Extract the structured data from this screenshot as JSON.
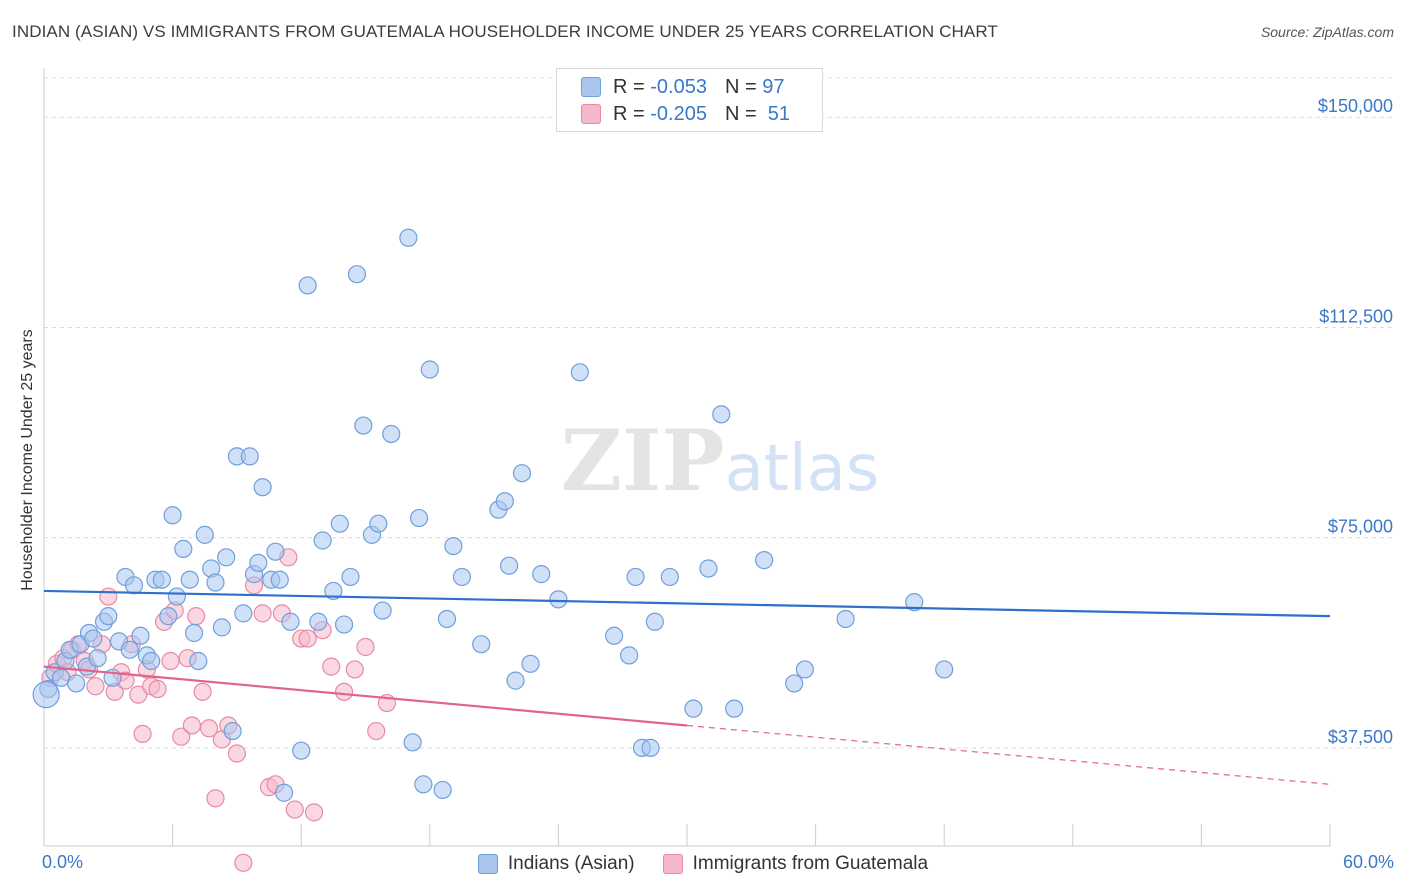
{
  "title": "INDIAN (ASIAN) VS IMMIGRANTS FROM GUATEMALA HOUSEHOLDER INCOME UNDER 25 YEARS CORRELATION CHART",
  "source": "Source: ZipAtlas.com",
  "watermark": "ZIPatlas",
  "colors": {
    "blue_fill": "#a9c7ee",
    "blue_stroke": "#6f9fdc",
    "blue_line": "#2f6fce",
    "pink_fill": "#f5b8c9",
    "pink_stroke": "#e88aa6",
    "pink_line": "#e0648c",
    "tick_label": "#3a78c9",
    "grid": "#dcdcdc"
  },
  "legend_top": {
    "row1": {
      "r_label": "R =",
      "r_value": "-0.053",
      "n_label": "N =",
      "n_value": "97"
    },
    "row2": {
      "r_label": "R =",
      "r_value": "-0.205",
      "n_label": "N =",
      "n_value": "51"
    }
  },
  "chart_data": {
    "type": "scatter",
    "title": "INDIAN (ASIAN) VS IMMIGRANTS FROM GUATEMALA HOUSEHOLDER INCOME UNDER 25 YEARS CORRELATION CHART",
    "xlabel": "",
    "ylabel": "Householder Income Under 25 years",
    "xlim": [
      0,
      60
    ],
    "ylim": [
      20000,
      157000
    ],
    "x_tick_labels": [
      "0.0%",
      "60.0%"
    ],
    "y_ticks": [
      37500,
      75000,
      112500,
      150000
    ],
    "y_tick_labels": [
      "$37,500",
      "$75,000",
      "$112,500",
      "$150,000"
    ],
    "grid": true,
    "series": [
      {
        "name": "Indians (Asian)",
        "r": -0.053,
        "n": 97,
        "trend": {
          "x": [
            0,
            60
          ],
          "y": [
            65500,
            61000
          ]
        },
        "points": [
          [
            0.2,
            48000
          ],
          [
            0.5,
            51000
          ],
          [
            0.8,
            50000
          ],
          [
            1.0,
            53000
          ],
          [
            1.2,
            55000
          ],
          [
            1.5,
            49000
          ],
          [
            1.7,
            56000
          ],
          [
            2.0,
            52000
          ],
          [
            2.1,
            58000
          ],
          [
            2.3,
            57000
          ],
          [
            2.5,
            53500
          ],
          [
            2.8,
            60000
          ],
          [
            3.0,
            61000
          ],
          [
            3.2,
            50000
          ],
          [
            3.5,
            56500
          ],
          [
            3.8,
            68000
          ],
          [
            4.0,
            55000
          ],
          [
            4.2,
            66500
          ],
          [
            4.5,
            57500
          ],
          [
            4.8,
            54000
          ],
          [
            5.0,
            53000
          ],
          [
            5.2,
            67500
          ],
          [
            5.5,
            67500
          ],
          [
            5.8,
            61000
          ],
          [
            6.0,
            79000
          ],
          [
            6.2,
            64500
          ],
          [
            6.5,
            73000
          ],
          [
            6.8,
            67500
          ],
          [
            7.0,
            58000
          ],
          [
            7.2,
            53000
          ],
          [
            7.5,
            75500
          ],
          [
            7.8,
            69500
          ],
          [
            8.0,
            67000
          ],
          [
            8.3,
            59000
          ],
          [
            8.5,
            71500
          ],
          [
            8.8,
            40500
          ],
          [
            9.0,
            89500
          ],
          [
            9.3,
            61500
          ],
          [
            9.6,
            89500
          ],
          [
            9.8,
            68500
          ],
          [
            10.0,
            70500
          ],
          [
            10.2,
            84000
          ],
          [
            10.6,
            67500
          ],
          [
            10.8,
            72500
          ],
          [
            11.0,
            67500
          ],
          [
            11.2,
            29500
          ],
          [
            11.5,
            60000
          ],
          [
            12.0,
            37000
          ],
          [
            12.3,
            120000
          ],
          [
            12.8,
            60000
          ],
          [
            13.0,
            74500
          ],
          [
            13.5,
            65500
          ],
          [
            13.8,
            77500
          ],
          [
            14.0,
            59500
          ],
          [
            14.3,
            68000
          ],
          [
            14.6,
            122000
          ],
          [
            14.9,
            95000
          ],
          [
            15.3,
            75500
          ],
          [
            15.6,
            77500
          ],
          [
            15.8,
            62000
          ],
          [
            16.2,
            93500
          ],
          [
            17.0,
            128500
          ],
          [
            17.2,
            38500
          ],
          [
            17.5,
            78500
          ],
          [
            17.7,
            31000
          ],
          [
            18.0,
            105000
          ],
          [
            18.6,
            30000
          ],
          [
            18.8,
            60500
          ],
          [
            19.1,
            73500
          ],
          [
            19.5,
            68000
          ],
          [
            20.4,
            56000
          ],
          [
            21.2,
            80000
          ],
          [
            21.5,
            81500
          ],
          [
            21.7,
            70000
          ],
          [
            22.0,
            49500
          ],
          [
            22.3,
            86500
          ],
          [
            22.7,
            52500
          ],
          [
            23.2,
            68500
          ],
          [
            24.0,
            64000
          ],
          [
            25.0,
            104500
          ],
          [
            26.6,
            57500
          ],
          [
            27.3,
            54000
          ],
          [
            27.6,
            68000
          ],
          [
            27.9,
            37500
          ],
          [
            28.3,
            37500
          ],
          [
            29.2,
            68000
          ],
          [
            30.3,
            44500
          ],
          [
            31.0,
            69500
          ],
          [
            31.6,
            97000
          ],
          [
            32.2,
            44500
          ],
          [
            33.6,
            71000
          ],
          [
            35.0,
            49000
          ],
          [
            35.5,
            51500
          ],
          [
            37.4,
            60500
          ],
          [
            40.6,
            63500
          ],
          [
            42.0,
            51500
          ],
          [
            28.5,
            60000
          ]
        ]
      },
      {
        "name": "Immigrants from Guatemala",
        "r": -0.205,
        "n": 51,
        "trend": {
          "x": [
            0,
            30
          ],
          "y": [
            52000,
            41500
          ]
        },
        "trend_dashed": {
          "x": [
            30,
            60
          ],
          "y": [
            41500,
            31000
          ]
        },
        "points": [
          [
            0.3,
            50000
          ],
          [
            0.6,
            52500
          ],
          [
            0.9,
            53500
          ],
          [
            1.1,
            51000
          ],
          [
            1.3,
            55000
          ],
          [
            1.6,
            56000
          ],
          [
            1.9,
            53000
          ],
          [
            2.1,
            51500
          ],
          [
            2.4,
            48500
          ],
          [
            2.7,
            56000
          ],
          [
            3.0,
            64500
          ],
          [
            3.3,
            47500
          ],
          [
            3.6,
            51000
          ],
          [
            3.8,
            49500
          ],
          [
            4.1,
            56000
          ],
          [
            4.4,
            47000
          ],
          [
            4.6,
            40000
          ],
          [
            4.8,
            51500
          ],
          [
            5.0,
            48500
          ],
          [
            5.3,
            48000
          ],
          [
            5.6,
            60000
          ],
          [
            5.9,
            53000
          ],
          [
            6.1,
            62000
          ],
          [
            6.4,
            39500
          ],
          [
            6.7,
            53500
          ],
          [
            6.9,
            41500
          ],
          [
            7.1,
            61000
          ],
          [
            7.4,
            47500
          ],
          [
            7.7,
            41000
          ],
          [
            8.0,
            28500
          ],
          [
            8.3,
            39000
          ],
          [
            8.6,
            41500
          ],
          [
            9.0,
            36500
          ],
          [
            9.3,
            17000
          ],
          [
            9.8,
            66500
          ],
          [
            10.2,
            61500
          ],
          [
            10.5,
            30500
          ],
          [
            10.8,
            31000
          ],
          [
            11.1,
            61500
          ],
          [
            11.4,
            71500
          ],
          [
            11.7,
            26500
          ],
          [
            12.0,
            57000
          ],
          [
            12.3,
            57000
          ],
          [
            12.6,
            26000
          ],
          [
            13.0,
            58500
          ],
          [
            13.4,
            52000
          ],
          [
            14.0,
            47500
          ],
          [
            14.5,
            51500
          ],
          [
            15.0,
            55500
          ],
          [
            15.5,
            40500
          ],
          [
            16.0,
            45500
          ]
        ]
      }
    ]
  },
  "bottom_legend": {
    "item1": "Indians (Asian)",
    "item2": "Immigrants from Guatemala"
  },
  "x_axis": {
    "min_label": "0.0%",
    "max_label": "60.0%"
  }
}
